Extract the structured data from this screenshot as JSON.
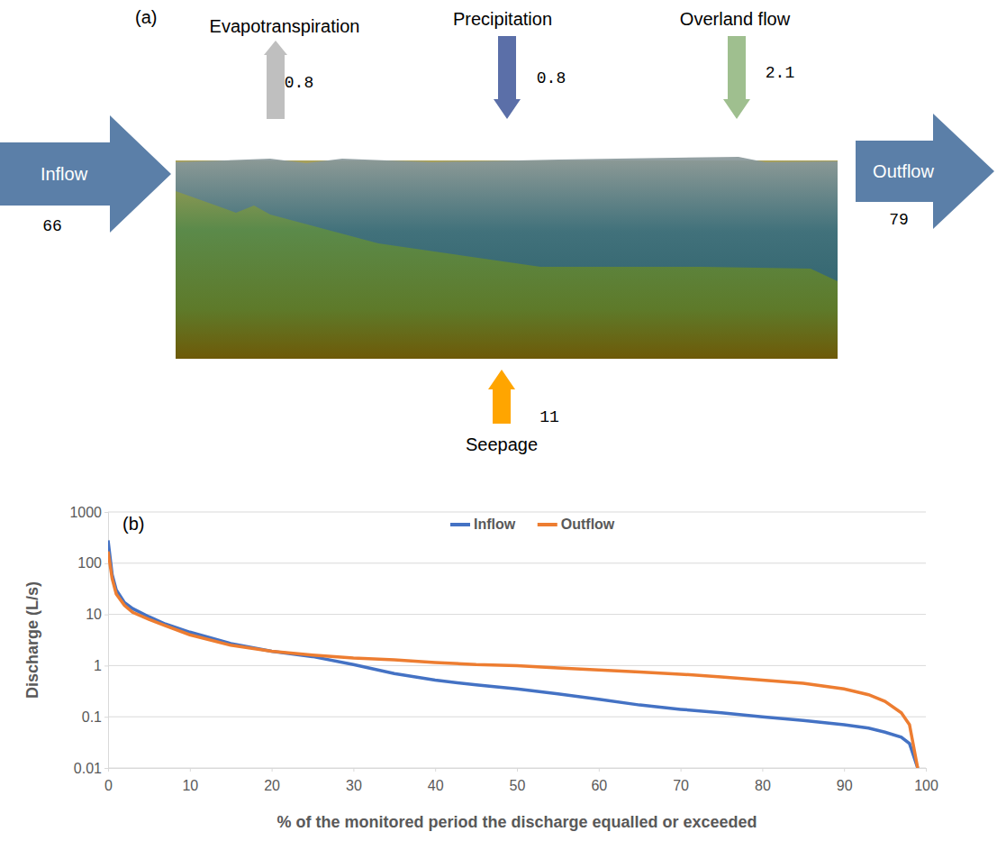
{
  "diagram": {
    "label": "(a)",
    "flows": [
      {
        "name": "Inflow",
        "value": 66
      },
      {
        "name": "Evapotranspiration",
        "value": 0.8
      },
      {
        "name": "Precipitation",
        "value": 0.8
      },
      {
        "name": "Overland flow",
        "value": 2.1
      },
      {
        "name": "Outflow",
        "value": 79
      },
      {
        "name": "Seepage",
        "value": 11
      }
    ]
  },
  "chart_data": {
    "type": "line",
    "title": "(b)",
    "x_label": "% of the monitored period the discharge equalled or exceeded",
    "y_label": "Discharge (L/s)",
    "x": [
      0,
      0.5,
      1,
      2,
      3,
      5,
      7,
      10,
      15,
      20,
      25,
      30,
      35,
      40,
      45,
      50,
      55,
      60,
      65,
      70,
      75,
      80,
      85,
      90,
      93,
      95,
      97,
      98,
      99
    ],
    "series": [
      {
        "name": "Inflow",
        "color": "#4472C4",
        "values": [
          280,
          60,
          30,
          17,
          13,
          9,
          6.5,
          4.5,
          2.7,
          1.9,
          1.5,
          1.05,
          0.7,
          0.52,
          0.42,
          0.35,
          0.28,
          0.22,
          0.17,
          0.14,
          0.12,
          0.1,
          0.085,
          0.07,
          0.06,
          0.05,
          0.04,
          0.03,
          0.01
        ]
      },
      {
        "name": "Outflow",
        "color": "#ED7D31",
        "values": [
          170,
          50,
          25,
          15,
          11,
          8,
          6,
          4,
          2.5,
          1.9,
          1.6,
          1.4,
          1.3,
          1.15,
          1.05,
          1.0,
          0.9,
          0.82,
          0.75,
          0.68,
          0.6,
          0.52,
          0.45,
          0.35,
          0.27,
          0.2,
          0.12,
          0.07,
          0.01
        ]
      }
    ],
    "xlim": [
      0,
      100
    ],
    "xticks": [
      0,
      10,
      20,
      30,
      40,
      50,
      60,
      70,
      80,
      90,
      100
    ],
    "ylim": [
      0.01,
      1000
    ],
    "yticks": [
      0.01,
      0.1,
      1,
      10,
      100,
      1000
    ],
    "log": "y",
    "grid": true,
    "legend": "top"
  }
}
